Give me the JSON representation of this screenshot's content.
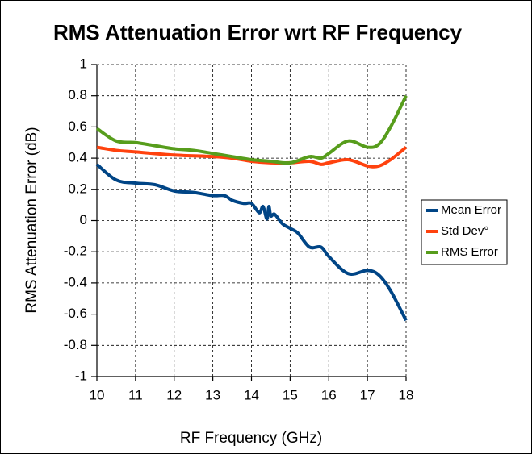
{
  "chart_data": {
    "type": "line",
    "title": "RMS Attenuation Error wrt RF Frequency",
    "xlabel": "RF Frequency (GHz)",
    "ylabel": "RMS Attenuation Error (dB)",
    "xlim": [
      10,
      18
    ],
    "xticks": [
      10,
      11,
      12,
      13,
      14,
      15,
      16,
      17,
      18
    ],
    "ylim": [
      -1,
      1
    ],
    "yticks": [
      -1,
      -0.8,
      -0.6,
      -0.4,
      -0.2,
      0,
      0.2,
      0.4,
      0.6,
      0.8,
      1
    ],
    "grid": true,
    "legend": "right",
    "series": [
      {
        "name": "Mean Error",
        "color": "#004586",
        "x": [
          10,
          10.5,
          11,
          11.5,
          12,
          12.5,
          13,
          13.3,
          13.5,
          13.8,
          14,
          14.2,
          14.3,
          14.4,
          14.45,
          14.5,
          14.6,
          14.8,
          15,
          15.2,
          15.5,
          15.8,
          16,
          16.5,
          17,
          17.3,
          17.6,
          18
        ],
        "values": [
          0.36,
          0.26,
          0.24,
          0.23,
          0.19,
          0.18,
          0.16,
          0.16,
          0.13,
          0.11,
          0.11,
          0.05,
          0.09,
          0.01,
          0.09,
          0.03,
          0.04,
          -0.02,
          -0.05,
          -0.08,
          -0.17,
          -0.17,
          -0.23,
          -0.34,
          -0.32,
          -0.35,
          -0.45,
          -0.64
        ]
      },
      {
        "name": "Std Dev°",
        "color": "#ff420e",
        "x": [
          10,
          10.5,
          11,
          12,
          13,
          13.5,
          14,
          14.5,
          15,
          15.5,
          15.8,
          16,
          16.5,
          17,
          17.3,
          17.6,
          18
        ],
        "values": [
          0.47,
          0.45,
          0.44,
          0.42,
          0.41,
          0.4,
          0.38,
          0.37,
          0.37,
          0.38,
          0.36,
          0.37,
          0.39,
          0.35,
          0.35,
          0.39,
          0.47
        ]
      },
      {
        "name": "RMS Error",
        "color": "#579d1c",
        "x": [
          10,
          10.5,
          11,
          11.5,
          12,
          12.5,
          13,
          13.5,
          14,
          14.5,
          15,
          15.5,
          15.8,
          16,
          16.5,
          17,
          17.3,
          17.6,
          18
        ],
        "values": [
          0.59,
          0.51,
          0.5,
          0.48,
          0.46,
          0.45,
          0.43,
          0.41,
          0.39,
          0.38,
          0.37,
          0.41,
          0.4,
          0.43,
          0.51,
          0.47,
          0.49,
          0.6,
          0.8
        ]
      }
    ]
  }
}
